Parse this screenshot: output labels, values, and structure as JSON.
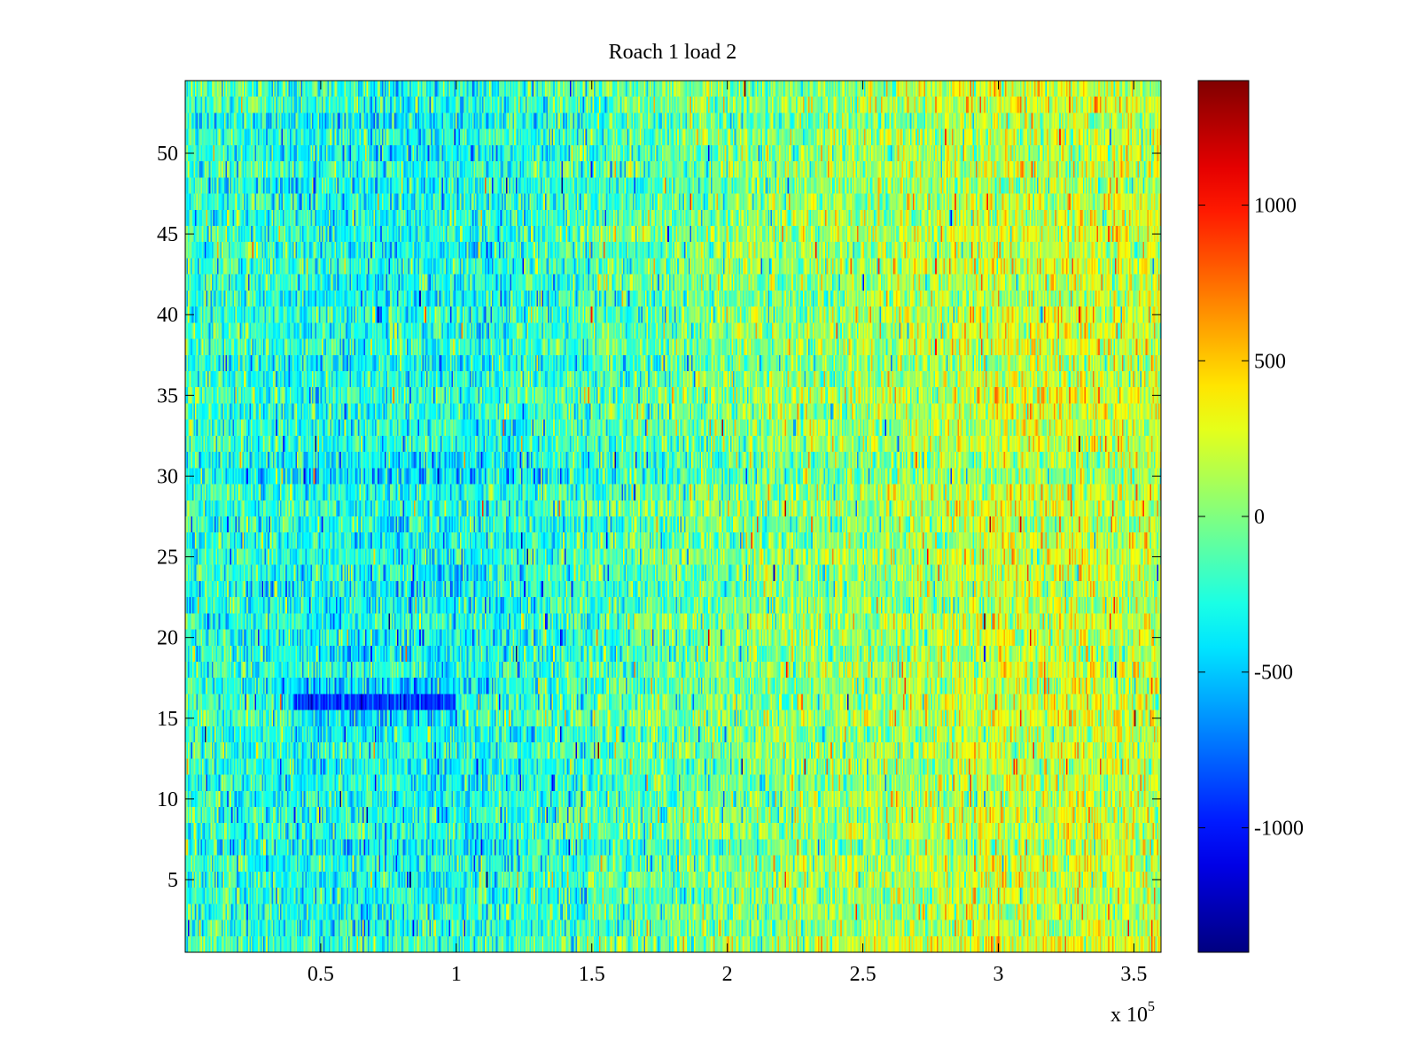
{
  "chart_data": {
    "type": "heatmap",
    "title": "Roach 1 load 2",
    "xlabel": "",
    "ylabel": "",
    "colormap": "jet",
    "x_range": [
      0,
      360000
    ],
    "y_range": [
      0.5,
      54.5
    ],
    "rows": 54,
    "x_ticks": [
      50000,
      100000,
      150000,
      200000,
      250000,
      300000,
      350000
    ],
    "x_tick_labels": [
      "0.5",
      "1",
      "1.5",
      "2",
      "2.5",
      "3",
      "3.5"
    ],
    "x_multiplier_base": "x 10",
    "x_multiplier_exp": "5",
    "y_ticks": [
      5,
      10,
      15,
      20,
      25,
      30,
      35,
      40,
      45,
      50
    ],
    "y_tick_labels": [
      "5",
      "10",
      "15",
      "20",
      "25",
      "30",
      "35",
      "40",
      "45",
      "50"
    ],
    "colorbar": {
      "range": [
        -1400,
        1400
      ],
      "ticks": [
        -1000,
        -500,
        0,
        500,
        1000
      ],
      "tick_labels": [
        "-1000",
        "-500",
        "0",
        "500",
        "1000"
      ]
    },
    "trend": {
      "description_points_x": [
        0,
        50000,
        100000,
        150000,
        200000,
        250000,
        300000,
        360000
      ],
      "mean_values": [
        -200,
        -300,
        -320,
        -180,
        -20,
        60,
        200,
        170
      ]
    },
    "anomaly": {
      "row": 16,
      "x_range": [
        40000,
        100000
      ],
      "mean_value": -900
    },
    "grid": false
  }
}
